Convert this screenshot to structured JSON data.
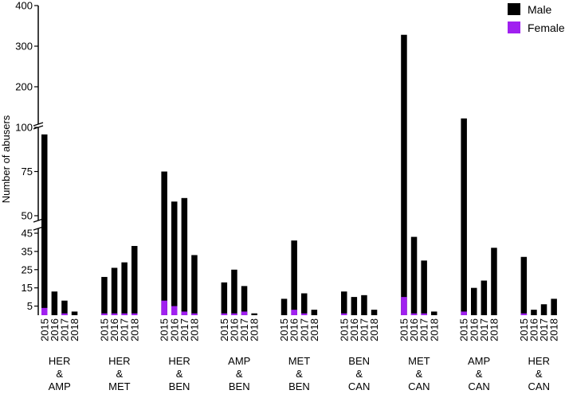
{
  "chart_data": {
    "type": "bar",
    "stacked": true,
    "broken_y_axis": true,
    "ylabel": "Number of abusers",
    "y_segments": [
      {
        "range": [
          0,
          45
        ],
        "ticks": [
          5,
          15,
          25,
          35,
          45
        ],
        "tick_labels": [
          "5",
          "15",
          "25",
          "35",
          "45"
        ]
      },
      {
        "range": [
          50,
          100
        ],
        "ticks": [
          50,
          75,
          100
        ],
        "tick_labels": [
          "50",
          "75",
          "100"
        ]
      },
      {
        "range": [
          100,
          400
        ],
        "ticks": [
          200,
          300,
          400
        ],
        "tick_labels": [
          "200",
          "300",
          "400"
        ]
      }
    ],
    "years": [
      "2015",
      "2016",
      "2017",
      "2018"
    ],
    "groups": [
      {
        "label": [
          "HER",
          "&",
          "AMP"
        ],
        "male": [
          96,
          13,
          8,
          2
        ],
        "female": [
          4,
          0,
          1,
          0
        ]
      },
      {
        "label": [
          "HER",
          "&",
          "MET"
        ],
        "male": [
          21,
          26,
          29,
          38
        ],
        "female": [
          1,
          1,
          1,
          1
        ]
      },
      {
        "label": [
          "HER",
          "&",
          "BEN"
        ],
        "male": [
          75,
          58,
          60,
          33
        ],
        "female": [
          8,
          5,
          2,
          1
        ]
      },
      {
        "label": [
          "AMP",
          "&",
          "BEN"
        ],
        "male": [
          18,
          25,
          16,
          1
        ],
        "female": [
          1,
          1,
          2,
          0
        ]
      },
      {
        "label": [
          "MET",
          "&",
          "BEN"
        ],
        "male": [
          9,
          41,
          12,
          3
        ],
        "female": [
          0,
          3,
          1,
          0
        ]
      },
      {
        "label": [
          "BEN",
          "&",
          "CAN"
        ],
        "male": [
          13,
          10,
          11,
          3
        ],
        "female": [
          1,
          0,
          0,
          0
        ]
      },
      {
        "label": [
          "MET",
          "&",
          "CAN"
        ],
        "male": [
          328,
          43,
          30,
          2
        ],
        "female": [
          10,
          1,
          1,
          0
        ]
      },
      {
        "label": [
          "AMP",
          "&",
          "CAN"
        ],
        "male": [
          122,
          15,
          19,
          37
        ],
        "female": [
          2,
          0,
          0,
          0
        ]
      },
      {
        "label": [
          "HER",
          "&",
          "CAN"
        ],
        "male": [
          32,
          3,
          6,
          9
        ],
        "female": [
          1,
          0,
          0,
          0
        ]
      }
    ],
    "series": [
      {
        "name": "Male",
        "color": "#000000"
      },
      {
        "name": "Female",
        "color": "#a020f0"
      }
    ],
    "legend_position": "top-right",
    "grid": false
  }
}
